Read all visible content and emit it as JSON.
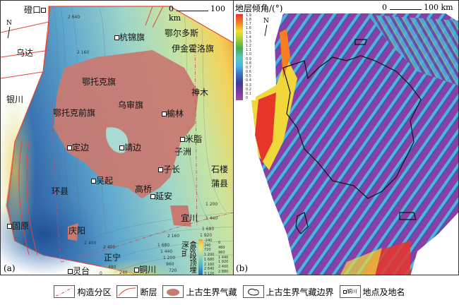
{
  "panel_a": {
    "label": "(a)",
    "scale": {
      "zero": "0",
      "length": "100 km"
    },
    "north": "N",
    "places": [
      "磴口",
      "乌达",
      "银川",
      "杭锦旗",
      "鄂尔多斯",
      "伊金霍洛旗",
      "鄂托克旗",
      "神木",
      "鄂托克前旗",
      "乌审旗",
      "榆林",
      "米脂",
      "子洲",
      "定边",
      "靖边",
      "子长",
      "石楼",
      "蒲县",
      "吴起",
      "环县",
      "高桥",
      "延安",
      "宜川",
      "固原",
      "庆阳",
      "正宁",
      "灵台",
      "铜川"
    ],
    "contour_labels": [
      "2 640",
      "2 160",
      "1 200",
      "1 440",
      "1 680",
      "1 920",
      "2 160",
      "2 400",
      "2 400",
      "1 680",
      "1 440",
      "1 200",
      "960",
      "720",
      "480",
      "240",
      "0"
    ],
    "colorbar": {
      "title": "盒8段顶埋深/m",
      "ticks": [
        "-240",
        "0",
        "240",
        "480",
        "720",
        "960",
        "1 200",
        "1 440",
        "1 680",
        "1 920",
        "2 160",
        "2 400",
        "2 640",
        "2 880",
        "3 120"
      ],
      "colors": [
        "#f39a2a",
        "#f7d24a",
        "#e6e27a",
        "#b6dc9a",
        "#8ccfb4",
        "#66c0c4",
        "#4aa7cf",
        "#3481c0",
        "#2a5fa8"
      ]
    }
  },
  "panel_b": {
    "label": "(b)",
    "title": "地层倾角/(°)",
    "scale": {
      "zero": "0",
      "length": "100 km"
    },
    "north": "N",
    "colorbar": {
      "ticks": [
        "1.9",
        "1.8",
        "1.7",
        "1.6",
        "1.5",
        "1.4",
        "1.3",
        "1.2",
        "1.1",
        "1.0",
        "0.9",
        "0.8",
        "0.7",
        "0.6",
        "0.5",
        "0.4",
        "0.3",
        "0.2",
        "0.1",
        "0"
      ],
      "colors": [
        "#e8352a",
        "#f57f22",
        "#f3e22c",
        "#9cd034",
        "#3fae4a",
        "#5bc4c0",
        "#49b6e4",
        "#3a6fc2",
        "#3c3a9a",
        "#7a3a9e",
        "#a24ca8"
      ]
    }
  },
  "legend": {
    "items": [
      "构造分区",
      "断层",
      "上古生界气藏",
      "上古生界气藏边界",
      "地点及地名"
    ],
    "sample_place": "铜川"
  },
  "colors": {
    "gas_reservoir": "#c87a72",
    "fault": "#e0483a"
  }
}
